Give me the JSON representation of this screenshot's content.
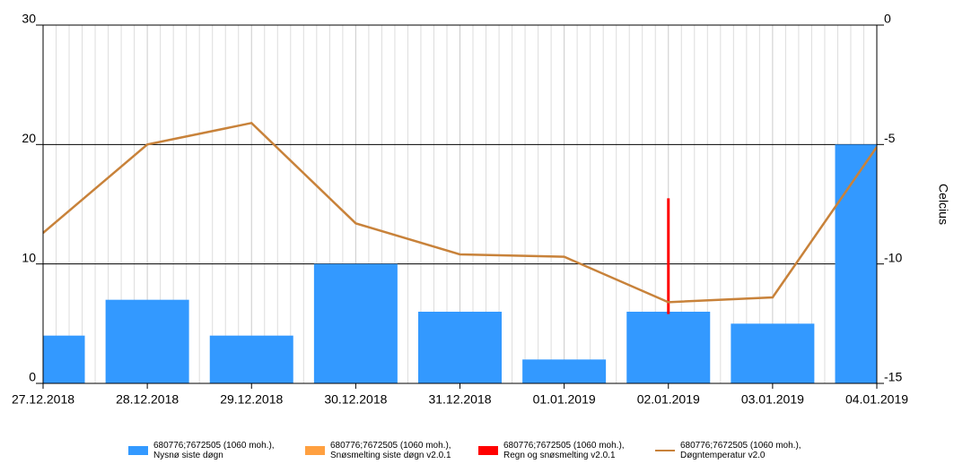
{
  "chart_data": {
    "type": "bar",
    "categories": [
      "27.12.2018",
      "28.12.2018",
      "29.12.2018",
      "30.12.2018",
      "31.12.2018",
      "01.01.2019",
      "02.01.2019",
      "03.01.2019",
      "04.01.2019"
    ],
    "ylim": [
      0,
      30
    ],
    "yticks": [
      0,
      10,
      20,
      30
    ],
    "y2lim": [
      -15,
      0
    ],
    "y2ticks": [
      0,
      -5,
      -10,
      -15
    ],
    "y2_label": "Celcius",
    "grid": true,
    "series": [
      {
        "name": "680776;7672505 (1060 moh.),\nNysnø siste døgn",
        "color": "#3399ff",
        "type": "bar",
        "values": [
          4,
          7,
          4,
          10,
          6,
          2,
          6,
          5,
          20
        ]
      },
      {
        "name": "680776;7672505 (1060 moh.),\nSnøsmelting siste døgn v2.0.1",
        "color": "#ffa040",
        "type": "bar"
      },
      {
        "name": "680776;7672505 (1060 moh.),\nRegn og snøsmelting v2.0.1",
        "color": "#ff0000",
        "type": "range",
        "ranges": [
          null,
          null,
          null,
          null,
          null,
          null,
          [
            5.8,
            15.5
          ],
          null,
          null
        ]
      },
      {
        "name": "680776;7672505 (1060 moh.),\nDøgntemperatur v2.0",
        "color": "#c8823a",
        "type": "line",
        "axis": "y2",
        "values": [
          -8.7,
          -5.0,
          -4.1,
          -8.3,
          -9.6,
          -9.7,
          -11.6,
          -11.4,
          -5.1
        ]
      }
    ]
  }
}
